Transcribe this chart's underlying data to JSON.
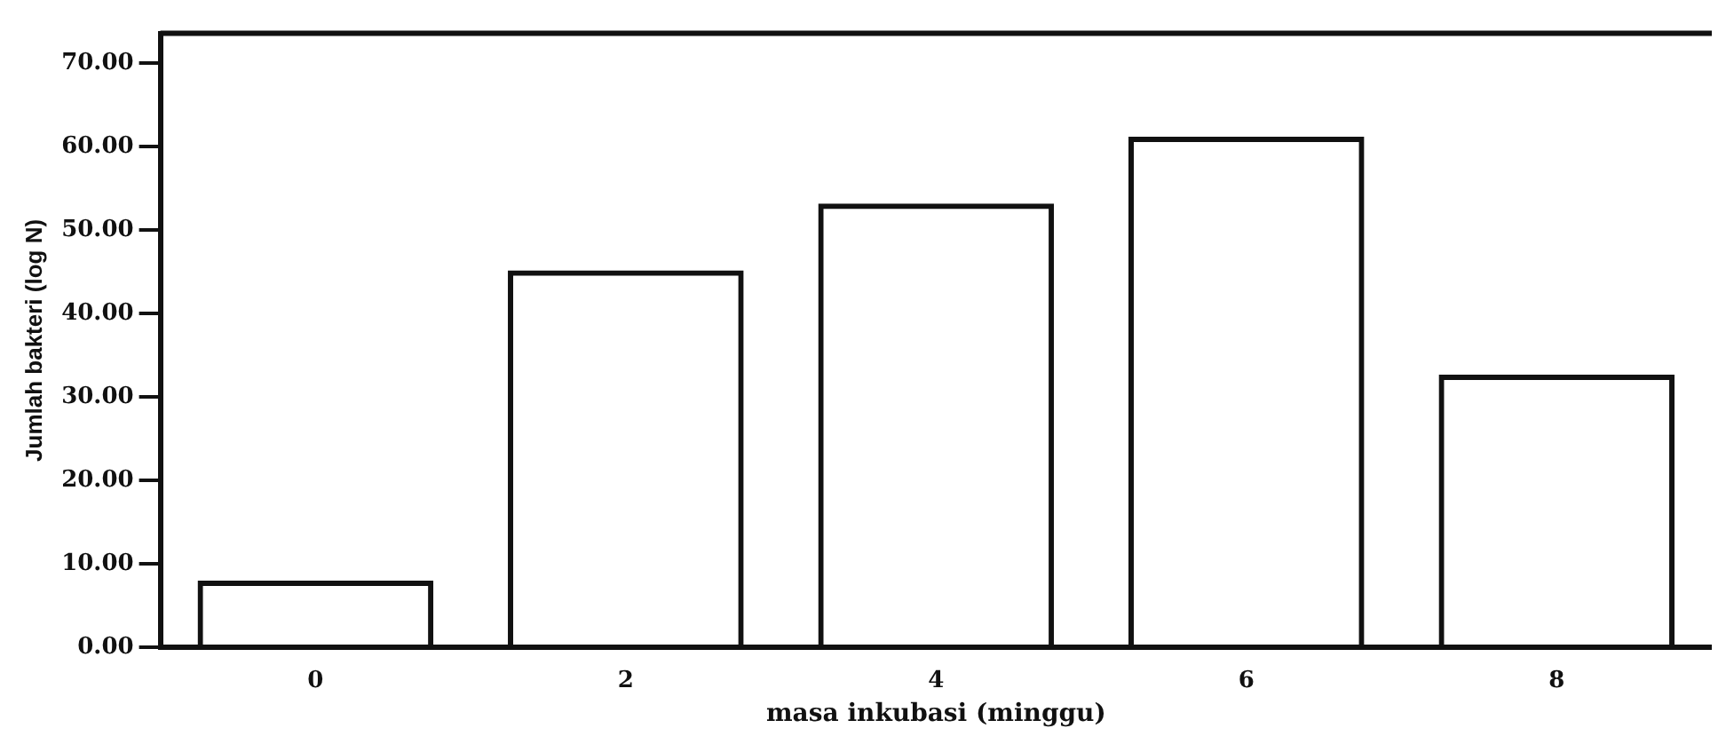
{
  "chart_data": {
    "type": "bar",
    "xlabel": "masa inkubasi (minggu)",
    "ylabel": "Jumlah bakteri (log N)",
    "categories": [
      "0",
      "2",
      "4",
      "6",
      "8"
    ],
    "values": [
      8.0,
      45.2,
      53.2,
      61.2,
      32.7
    ],
    "color": "#111111",
    "ylim": [
      0,
      73.6
    ],
    "yticks": [
      {
        "value": 0,
        "label": "0.00"
      },
      {
        "value": 10,
        "label": "10.00"
      },
      {
        "value": 20,
        "label": "20.00"
      },
      {
        "value": 30,
        "label": "30.00"
      },
      {
        "value": 40,
        "label": "40.00"
      },
      {
        "value": 50,
        "label": "50.00"
      },
      {
        "value": 60,
        "label": "60.00"
      },
      {
        "value": 70,
        "label": "70.00"
      }
    ],
    "grid": false,
    "legend": false
  }
}
